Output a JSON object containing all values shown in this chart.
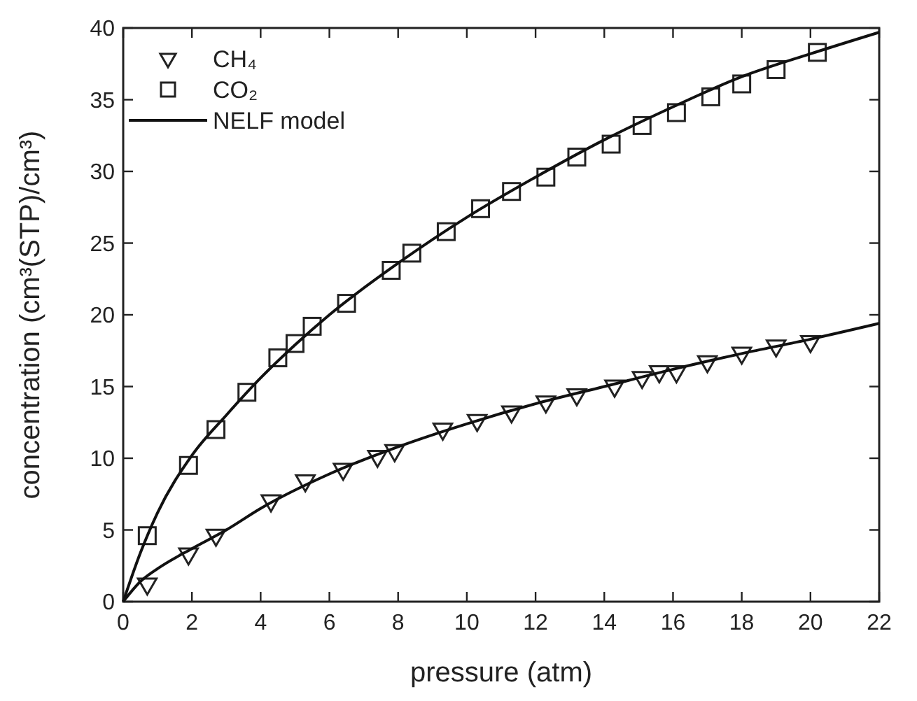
{
  "chart_data": {
    "type": "scatter",
    "xlabel": "pressure (atm)",
    "ylabel": "concentration (cm³(STP)/cm³)",
    "xlim": [
      0,
      22
    ],
    "ylim": [
      0,
      40
    ],
    "xticks": [
      0,
      2,
      4,
      6,
      8,
      10,
      12,
      14,
      16,
      18,
      20,
      22
    ],
    "yticks": [
      0,
      5,
      10,
      15,
      20,
      25,
      30,
      35,
      40
    ],
    "grid": false,
    "legend": "top left",
    "series": [
      {
        "name": "CH₄",
        "marker": "triangle",
        "color": "#222222",
        "x": [
          0.7,
          1.9,
          2.7,
          4.3,
          5.3,
          6.4,
          7.4,
          7.9,
          9.3,
          10.3,
          11.3,
          12.3,
          13.2,
          14.3,
          15.1,
          15.6,
          16.1,
          17,
          18,
          19,
          20
        ],
        "values": [
          1.2,
          3.3,
          4.6,
          7,
          8.4,
          9.2,
          10.1,
          10.5,
          12,
          12.6,
          13.2,
          13.9,
          14.4,
          15,
          15.6,
          16,
          16,
          16.7,
          17.3,
          17.8,
          18.1
        ]
      },
      {
        "name": "CO₂",
        "marker": "square",
        "color": "#222222",
        "x": [
          0.7,
          1.9,
          2.7,
          3.6,
          4.5,
          5,
          5.5,
          6.5,
          7.8,
          8.4,
          9.4,
          10.4,
          11.3,
          12.3,
          13.2,
          14.2,
          15.1,
          16.1,
          17.1,
          18,
          19,
          20.2
        ],
        "values": [
          4.6,
          9.5,
          12,
          14.6,
          17,
          18,
          19.2,
          20.8,
          23.1,
          24.3,
          25.8,
          27.4,
          28.6,
          29.6,
          31,
          31.9,
          33.2,
          34.1,
          35.2,
          36.1,
          37.1,
          38.3
        ]
      },
      {
        "name": "NELF model",
        "type": "line",
        "marker": "none",
        "line_style": "solid",
        "color": "#111111",
        "x": [
          0,
          0.5,
          1,
          2,
          3,
          4,
          5,
          6,
          8,
          10,
          12,
          14,
          16,
          18,
          20,
          22
        ],
        "values": [
          0,
          3.4,
          6.2,
          10.2,
          13,
          15.6,
          17.9,
          20,
          23.6,
          26.8,
          29.6,
          32.2,
          34.5,
          36.6,
          38.2,
          39.7
        ]
      },
      {
        "type": "line",
        "marker": "none",
        "line_style": "solid",
        "color": "#111111",
        "x": [
          0,
          0.5,
          1,
          2,
          3,
          4,
          6,
          8,
          10,
          12,
          14,
          16,
          18,
          20,
          22
        ],
        "values": [
          0,
          1.4,
          2.3,
          3.7,
          5,
          6.5,
          8.9,
          10.8,
          12.4,
          13.8,
          15,
          16.2,
          17.3,
          18.3,
          19.4
        ]
      }
    ]
  }
}
